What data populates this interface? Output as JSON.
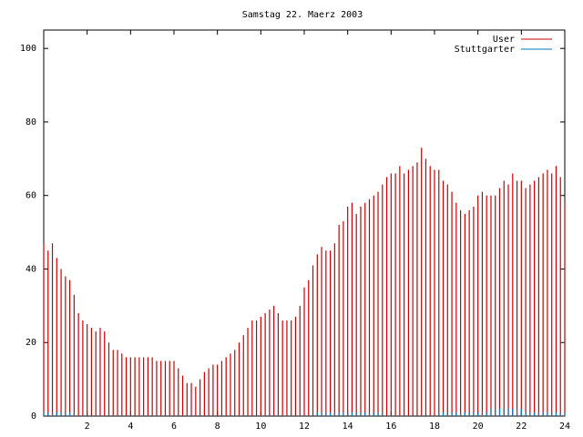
{
  "chart_data": {
    "type": "impulse",
    "title": "Samstag 22. Maerz 2003",
    "x": [
      0,
      0.2,
      0.4,
      0.6,
      0.8,
      1,
      1.2,
      1.4,
      1.6,
      1.8,
      2,
      2.2,
      2.4,
      2.6,
      2.8,
      3,
      3.2,
      3.4,
      3.6,
      3.8,
      4,
      4.2,
      4.4,
      4.6,
      4.8,
      5,
      5.2,
      5.4,
      5.6,
      5.8,
      6,
      6.2,
      6.4,
      6.6,
      6.8,
      7,
      7.2,
      7.4,
      7.6,
      7.8,
      8,
      8.2,
      8.4,
      8.6,
      8.8,
      9,
      9.2,
      9.4,
      9.6,
      9.8,
      10,
      10.2,
      10.4,
      10.6,
      10.8,
      11,
      11.2,
      11.4,
      11.6,
      11.8,
      12,
      12.2,
      12.4,
      12.6,
      12.8,
      13,
      13.2,
      13.4,
      13.6,
      13.8,
      14,
      14.2,
      14.4,
      14.6,
      14.8,
      15,
      15.2,
      15.4,
      15.6,
      15.8,
      16,
      16.2,
      16.4,
      16.6,
      16.8,
      17,
      17.2,
      17.4,
      17.6,
      17.8,
      18,
      18.2,
      18.4,
      18.6,
      18.8,
      19,
      19.2,
      19.4,
      19.6,
      19.8,
      20,
      20.2,
      20.4,
      20.6,
      20.8,
      21,
      21.2,
      21.4,
      21.6,
      21.8,
      22,
      22.2,
      22.4,
      22.6,
      22.8,
      23,
      23.2,
      23.4,
      23.6,
      23.8,
      24
    ],
    "series": [
      {
        "name": "User",
        "color": "#cc0000",
        "values": [
          47,
          45,
          47,
          43,
          40,
          38,
          37,
          33,
          28,
          26,
          25,
          24,
          23,
          24,
          23,
          20,
          18,
          18,
          17,
          16,
          16,
          16,
          16,
          16,
          16,
          16,
          15,
          15,
          15,
          15,
          15,
          13,
          11,
          9,
          9,
          8,
          10,
          12,
          13,
          14,
          14,
          15,
          16,
          17,
          18,
          20,
          22,
          24,
          26,
          26,
          27,
          28,
          29,
          30,
          28,
          26,
          26,
          26,
          27,
          30,
          35,
          37,
          41,
          44,
          46,
          45,
          45,
          47,
          52,
          53,
          57,
          58,
          55,
          57,
          58,
          59,
          60,
          61,
          63,
          65,
          66,
          66,
          68,
          66,
          67,
          68,
          69,
          73,
          70,
          68,
          67,
          67,
          64,
          63,
          61,
          58,
          56,
          55,
          56,
          57,
          60,
          61,
          60,
          60,
          60,
          62,
          64,
          63,
          66,
          64,
          64,
          62,
          63,
          64,
          65,
          66,
          67,
          66,
          68,
          65,
          58
        ]
      },
      {
        "name": "Stuttgarter",
        "color": "#0077bb",
        "values": [
          1,
          1,
          1,
          1,
          1,
          1,
          1,
          1,
          0,
          0,
          0,
          0,
          0,
          0,
          0,
          0,
          0,
          0,
          0,
          0,
          0,
          0,
          0,
          0,
          0,
          0,
          0,
          0,
          0,
          0,
          0,
          0,
          0,
          0,
          0,
          0,
          0,
          0,
          0,
          0,
          0,
          0,
          0,
          0,
          0,
          0,
          0,
          0,
          0,
          0,
          0,
          0,
          0,
          0,
          0,
          0,
          0,
          0,
          0,
          0,
          0,
          0,
          0,
          1,
          1,
          1,
          1,
          1,
          1,
          1,
          1,
          1,
          1,
          1,
          1,
          1,
          1,
          1,
          1,
          0,
          0,
          0,
          0,
          0,
          0,
          0,
          0,
          0,
          0,
          0,
          0,
          1,
          1,
          1,
          1,
          1,
          1,
          1,
          1,
          1,
          1,
          1,
          1,
          2,
          2,
          2,
          2,
          2,
          2,
          2,
          2,
          1,
          1,
          1,
          1,
          1,
          1,
          1,
          1,
          1,
          1
        ]
      }
    ],
    "xlim": [
      0,
      24
    ],
    "xticks": [
      2,
      4,
      6,
      8,
      10,
      12,
      14,
      16,
      18,
      20,
      22,
      24
    ],
    "ylim": [
      0,
      105
    ],
    "yticks": [
      0,
      20,
      40,
      60,
      80,
      100
    ],
    "legend": "top-right"
  }
}
